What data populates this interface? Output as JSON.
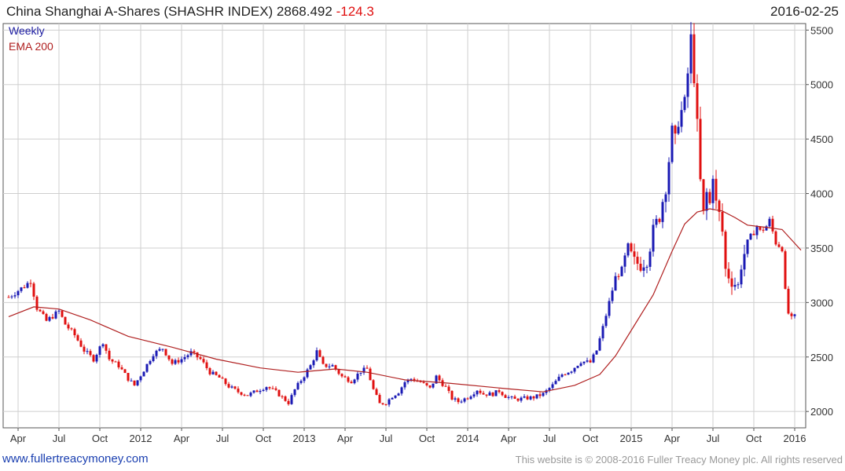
{
  "header": {
    "title_main": "China Shanghai A-Shares (SHASHR INDEX) 2868.492",
    "title_change": "-124.3",
    "date": "2016-02-25"
  },
  "legend": {
    "weekly": "Weekly",
    "ema": "EMA 200"
  },
  "footer": {
    "left": "www.fullertreacymoney.com",
    "right": "This website is © 2008-2016 Fuller Treacy Money plc. All rights reserved"
  },
  "colors": {
    "up": "#1a1ab4",
    "down": "#e01010",
    "ema": "#b02020",
    "grid": "#cfcfcf",
    "axis": "#555555"
  },
  "chart_data": {
    "type": "candlestick",
    "title": "China Shanghai A-Shares (SHASHR INDEX) 2868.492 -124.3",
    "interval": "Weekly",
    "ylim": [
      1850,
      5560
    ],
    "y_ticks": [
      2000,
      2500,
      3000,
      3500,
      4000,
      4500,
      5000,
      5500
    ],
    "x_ticks": [
      "Apr",
      "Jul",
      "Oct",
      "2012",
      "Apr",
      "Jul",
      "Oct",
      "2013",
      "Apr",
      "Jul",
      "Oct",
      "2014",
      "Apr",
      "Jul",
      "Oct",
      "2015",
      "Apr",
      "Jul",
      "Oct",
      "2016"
    ],
    "x_tick_weeks": [
      3,
      16,
      29,
      42,
      55,
      68,
      81,
      94,
      107,
      120,
      133,
      146,
      159,
      172,
      185,
      198,
      211,
      224,
      237,
      250
    ],
    "close_path": [
      [
        0,
        3050
      ],
      [
        5,
        3150
      ],
      [
        7,
        3200
      ],
      [
        9,
        2950
      ],
      [
        12,
        2830
      ],
      [
        16,
        2920
      ],
      [
        18,
        2800
      ],
      [
        21,
        2700
      ],
      [
        24,
        2560
      ],
      [
        27,
        2480
      ],
      [
        30,
        2640
      ],
      [
        32,
        2480
      ],
      [
        35,
        2420
      ],
      [
        38,
        2300
      ],
      [
        40,
        2240
      ],
      [
        43,
        2380
      ],
      [
        46,
        2530
      ],
      [
        49,
        2580
      ],
      [
        52,
        2440
      ],
      [
        55,
        2480
      ],
      [
        58,
        2540
      ],
      [
        61,
        2480
      ],
      [
        64,
        2360
      ],
      [
        67,
        2310
      ],
      [
        70,
        2230
      ],
      [
        73,
        2180
      ],
      [
        76,
        2150
      ],
      [
        79,
        2190
      ],
      [
        82,
        2230
      ],
      [
        85,
        2180
      ],
      [
        89,
        2080
      ],
      [
        91,
        2200
      ],
      [
        94,
        2330
      ],
      [
        96,
        2420
      ],
      [
        98,
        2550
      ],
      [
        100,
        2420
      ],
      [
        103,
        2420
      ],
      [
        106,
        2320
      ],
      [
        109,
        2280
      ],
      [
        112,
        2370
      ],
      [
        114,
        2390
      ],
      [
        116,
        2200
      ],
      [
        118,
        2070
      ],
      [
        120,
        2080
      ],
      [
        122,
        2140
      ],
      [
        124,
        2180
      ],
      [
        126,
        2270
      ],
      [
        128,
        2300
      ],
      [
        131,
        2270
      ],
      [
        134,
        2210
      ],
      [
        136,
        2320
      ],
      [
        139,
        2220
      ],
      [
        141,
        2120
      ],
      [
        143,
        2090
      ],
      [
        146,
        2130
      ],
      [
        149,
        2200
      ],
      [
        151,
        2160
      ],
      [
        154,
        2160
      ],
      [
        156,
        2190
      ],
      [
        158,
        2140
      ],
      [
        161,
        2110
      ],
      [
        164,
        2120
      ],
      [
        167,
        2130
      ],
      [
        170,
        2160
      ],
      [
        173,
        2240
      ],
      [
        176,
        2340
      ],
      [
        179,
        2380
      ],
      [
        182,
        2460
      ],
      [
        185,
        2450
      ],
      [
        187,
        2560
      ],
      [
        189,
        2770
      ],
      [
        191,
        3000
      ],
      [
        193,
        3230
      ],
      [
        195,
        3300
      ],
      [
        197,
        3480
      ],
      [
        199,
        3370
      ],
      [
        201,
        3350
      ],
      [
        203,
        3400
      ],
      [
        205,
        3650
      ],
      [
        207,
        3800
      ],
      [
        209,
        4080
      ],
      [
        211,
        4550
      ],
      [
        212,
        4460
      ],
      [
        213,
        4700
      ],
      [
        215,
        4800
      ],
      [
        216,
        5100
      ],
      [
        217,
        5400
      ],
      [
        218,
        5100
      ],
      [
        219,
        4600
      ],
      [
        220,
        4100
      ],
      [
        221,
        3800
      ],
      [
        222,
        4000
      ],
      [
        223,
        3900
      ],
      [
        224,
        4200
      ],
      [
        225,
        3900
      ],
      [
        226,
        3800
      ],
      [
        227,
        3650
      ],
      [
        228,
        3300
      ],
      [
        229,
        3250
      ],
      [
        230,
        3200
      ],
      [
        232,
        3150
      ],
      [
        233,
        3350
      ],
      [
        235,
        3550
      ],
      [
        236,
        3600
      ],
      [
        238,
        3700
      ],
      [
        239,
        3650
      ],
      [
        241,
        3700
      ],
      [
        242,
        3750
      ],
      [
        244,
        3550
      ],
      [
        246,
        3500
      ],
      [
        247,
        3100
      ],
      [
        248,
        2900
      ],
      [
        249,
        2850
      ],
      [
        250,
        2870
      ]
    ],
    "ema_200": [
      [
        0,
        2870
      ],
      [
        8,
        2960
      ],
      [
        16,
        2940
      ],
      [
        26,
        2840
      ],
      [
        38,
        2690
      ],
      [
        52,
        2590
      ],
      [
        66,
        2480
      ],
      [
        80,
        2400
      ],
      [
        92,
        2360
      ],
      [
        104,
        2390
      ],
      [
        114,
        2360
      ],
      [
        126,
        2290
      ],
      [
        140,
        2260
      ],
      [
        158,
        2210
      ],
      [
        170,
        2180
      ],
      [
        180,
        2240
      ],
      [
        188,
        2340
      ],
      [
        193,
        2510
      ],
      [
        199,
        2790
      ],
      [
        205,
        3070
      ],
      [
        211,
        3470
      ],
      [
        215,
        3720
      ],
      [
        219,
        3830
      ],
      [
        223,
        3860
      ],
      [
        227,
        3840
      ],
      [
        231,
        3780
      ],
      [
        235,
        3710
      ],
      [
        241,
        3690
      ],
      [
        246,
        3670
      ],
      [
        252,
        3480
      ]
    ]
  }
}
